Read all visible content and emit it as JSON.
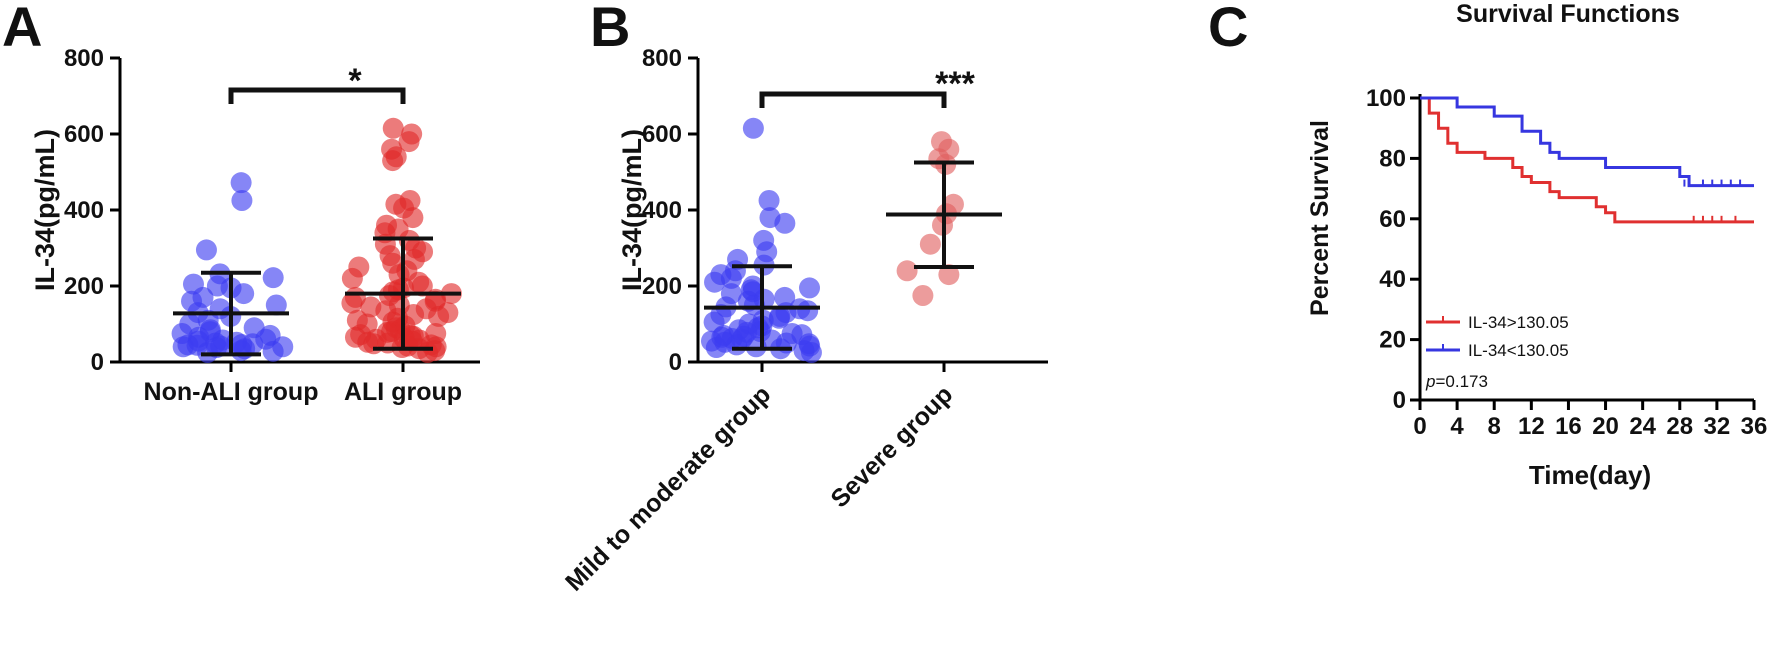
{
  "chart_data": [
    {
      "panel": "A",
      "type": "scatter",
      "ylabel": "IL-34(pg/mL)",
      "ylim": [
        0,
        800
      ],
      "yticks": [
        "0",
        "200",
        "400",
        "600",
        "800"
      ],
      "categories": [
        "Non-ALI group",
        "ALI group"
      ],
      "significance": "*",
      "colors": [
        "#3b3bf0",
        "#e02a2a"
      ],
      "groups": [
        {
          "name": "Non-ALI group",
          "mean": 128,
          "sd_low": 20,
          "sd_high": 235,
          "points": [
            472,
            425,
            295,
            232,
            222,
            205,
            200,
            195,
            180,
            170,
            160,
            150,
            140,
            130,
            120,
            110,
            100,
            90,
            85,
            80,
            75,
            70,
            65,
            60,
            58,
            55,
            52,
            50,
            48,
            46,
            45,
            44,
            42,
            40,
            40,
            38,
            35,
            30,
            28,
            25
          ]
        },
        {
          "name": "ALI group",
          "mean": 180,
          "sd_low": 35,
          "sd_high": 325,
          "points": [
            615,
            600,
            580,
            560,
            540,
            530,
            425,
            415,
            405,
            380,
            360,
            350,
            340,
            320,
            310,
            300,
            290,
            280,
            270,
            260,
            250,
            240,
            230,
            220,
            210,
            200,
            195,
            190,
            185,
            180,
            175,
            170,
            165,
            160,
            155,
            150,
            145,
            140,
            135,
            130,
            125,
            120,
            115,
            110,
            105,
            100,
            95,
            90,
            85,
            80,
            78,
            75,
            72,
            70,
            68,
            65,
            62,
            60,
            58,
            55,
            52,
            50,
            48,
            45,
            42,
            40,
            38,
            35,
            30,
            25
          ]
        }
      ]
    },
    {
      "panel": "B",
      "type": "scatter",
      "ylabel": "IL-34(pg/mL)",
      "ylim": [
        0,
        800
      ],
      "yticks": [
        "0",
        "200",
        "400",
        "600",
        "800"
      ],
      "categories": [
        "Mild to moderate group",
        "Severe group"
      ],
      "significance": "***",
      "colors": [
        "#3b3bf0",
        "#e06060"
      ],
      "groups": [
        {
          "name": "Mild to moderate group",
          "mean": 143,
          "sd_low": 35,
          "sd_high": 252,
          "points": [
            615,
            425,
            380,
            365,
            320,
            290,
            270,
            255,
            240,
            230,
            220,
            210,
            200,
            195,
            190,
            185,
            180,
            170,
            165,
            160,
            150,
            145,
            140,
            135,
            130,
            125,
            120,
            115,
            110,
            105,
            100,
            95,
            90,
            85,
            80,
            78,
            75,
            72,
            70,
            68,
            65,
            62,
            60,
            58,
            55,
            52,
            50,
            48,
            45,
            42,
            40,
            38,
            35,
            30,
            25
          ]
        },
        {
          "name": "Severe group",
          "mean": 388,
          "sd_low": 250,
          "sd_high": 525,
          "points": [
            580,
            560,
            535,
            520,
            415,
            390,
            360,
            310,
            240,
            230,
            175
          ]
        }
      ]
    },
    {
      "panel": "C",
      "type": "line",
      "title": "Survival Functions",
      "xlabel": "Time(day)",
      "ylabel": "Percent Survival",
      "xlim": [
        0,
        36
      ],
      "ylim": [
        0,
        100
      ],
      "xticks": [
        "0",
        "4",
        "8",
        "12",
        "16",
        "20",
        "24",
        "28",
        "32",
        "36"
      ],
      "yticks": [
        "0",
        "20",
        "40",
        "60",
        "80",
        "100"
      ],
      "annotation_prefix": "p",
      "annotation_value": "=0.173",
      "series": [
        {
          "name": "IL-34>130.05",
          "color": "#e03030",
          "steps": [
            [
              0,
              100
            ],
            [
              1,
              95
            ],
            [
              2,
              90
            ],
            [
              3,
              85
            ],
            [
              4,
              82
            ],
            [
              7,
              80
            ],
            [
              10,
              77
            ],
            [
              11,
              74
            ],
            [
              12,
              72
            ],
            [
              14,
              69
            ],
            [
              15,
              67
            ],
            [
              19,
              64
            ],
            [
              20,
              62
            ],
            [
              21,
              59
            ],
            [
              36,
              59
            ]
          ],
          "censor_x": [
            29.5,
            30.5,
            31.5,
            32.5,
            34
          ]
        },
        {
          "name": "IL-34<130.05",
          "color": "#3636e0",
          "steps": [
            [
              0,
              100
            ],
            [
              4,
              97
            ],
            [
              8,
              94
            ],
            [
              11,
              89
            ],
            [
              13,
              85
            ],
            [
              14,
              82
            ],
            [
              15,
              80
            ],
            [
              20,
              77
            ],
            [
              28,
              74
            ],
            [
              29,
              71
            ],
            [
              36,
              71
            ]
          ],
          "censor_x": [
            28.5,
            30.5,
            31.5,
            32.5,
            33.5,
            34.5
          ]
        }
      ]
    }
  ]
}
